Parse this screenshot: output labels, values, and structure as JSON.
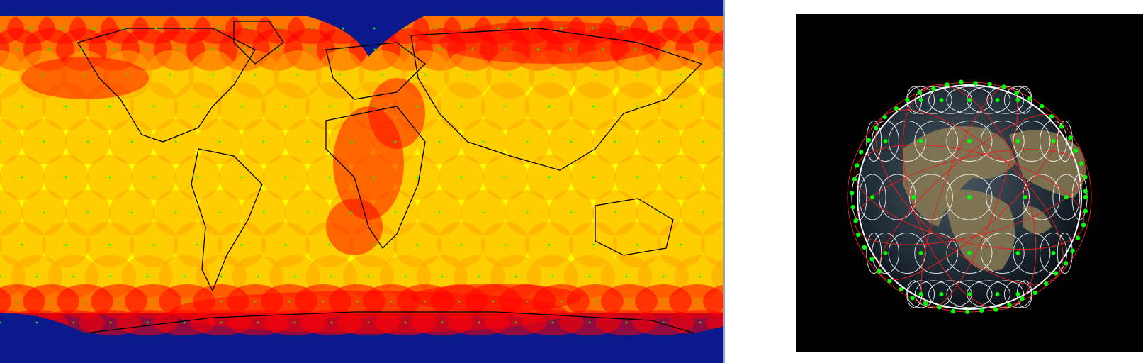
{
  "colors": {
    "ocean": "#0a1a8c",
    "coverage_1": "#ffff00",
    "coverage_2": "#ffa500",
    "coverage_3": "#ff0000",
    "land_outline": "#000000",
    "satellite": "#00ff00",
    "orbit": "#e0211f",
    "footprint": "#ffffff",
    "space": "#000000",
    "earth_land": "#8a7a52",
    "earth_sea": "#1d2d3a"
  },
  "icons": {
    "satellite": "satellite-icon",
    "earth": "earth-globe-icon"
  },
  "views": {
    "left": "coverage-map",
    "right": "3d-globe"
  }
}
